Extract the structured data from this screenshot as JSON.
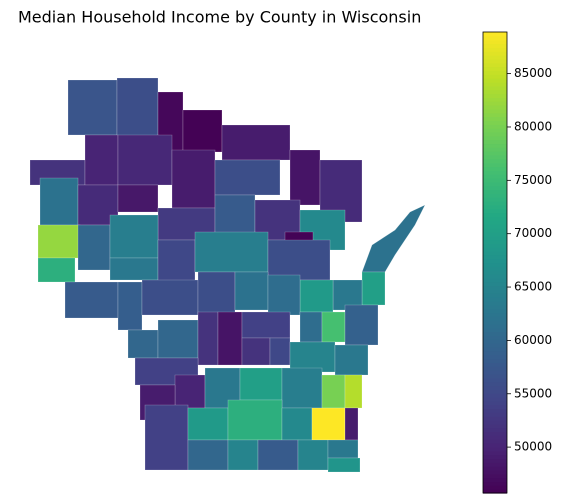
{
  "chart_data": {
    "type": "choropleth",
    "title": "Median Household Income by County in Wisconsin",
    "colormap": "viridis",
    "values": [
      57000,
      56000,
      46500,
      45800,
      49000,
      48000,
      51000,
      52000,
      50000,
      50500,
      49000,
      56000,
      62000,
      51000,
      48500,
      53000,
      58000,
      52000,
      66000,
      46000,
      62000,
      82000,
      73000,
      60000,
      64000,
      63000,
      55000,
      64000,
      56000,
      70000,
      63000,
      69000,
      58000,
      58500,
      56000,
      56000,
      62000,
      61000,
      61000,
      76000,
      59000,
      60000,
      60000,
      52000,
      48000,
      54000,
      52000,
      55000,
      65000,
      63000,
      54000,
      50000,
      63000,
      70000,
      64000,
      80000,
      84000,
      49000,
      54000,
      69000,
      73000,
      66000,
      89000,
      49000,
      60000,
      65000,
      58000,
      65000,
      63000,
      68000
    ],
    "colorbar": {
      "lim": [
        45700,
        88900
      ],
      "ticks": [
        50000,
        55000,
        60000,
        65000,
        70000,
        75000,
        80000,
        85000
      ]
    }
  }
}
